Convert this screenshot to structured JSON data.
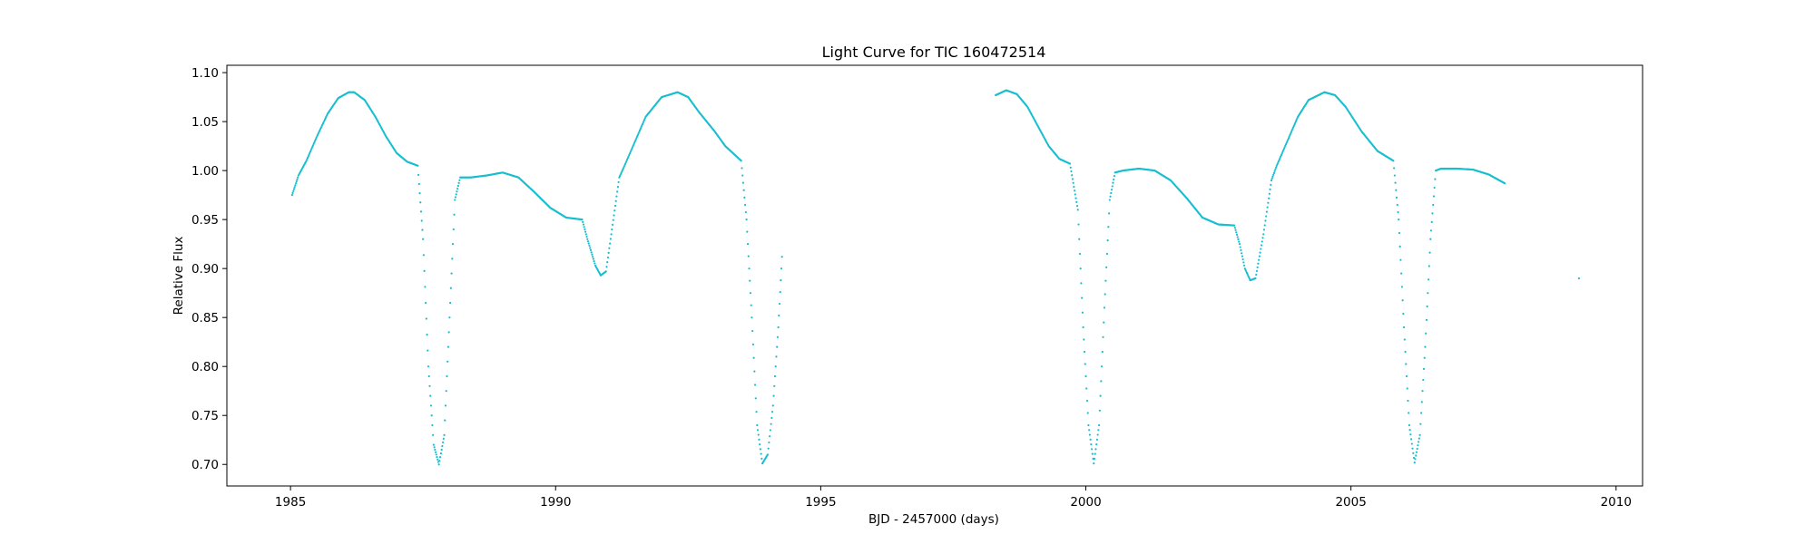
{
  "chart_data": {
    "type": "scatter",
    "title": "Light Curve for TIC 160472514",
    "xlabel": "BJD - 2457000 (days)",
    "ylabel": "Relative Flux",
    "xlim": [
      1983.8,
      2010.5
    ],
    "ylim": [
      0.678,
      1.1075
    ],
    "xticks": [
      1985,
      1990,
      1995,
      2000,
      2005,
      2010
    ],
    "xtick_labels": [
      "1985",
      "1990",
      "1995",
      "2000",
      "2005",
      "2010"
    ],
    "yticks": [
      0.7,
      0.75,
      0.8,
      0.85,
      0.9,
      0.95,
      1.0,
      1.05,
      1.1
    ],
    "ytick_labels": [
      "0.70",
      "0.75",
      "0.80",
      "0.85",
      "0.90",
      "0.95",
      "1.00",
      "1.05",
      "1.10"
    ],
    "grid": false,
    "marker_color": "#17becf",
    "series": [
      {
        "segment": 1,
        "x": [
          1985.03,
          1985.15,
          1985.3,
          1985.5,
          1985.7,
          1985.9,
          1986.1,
          1986.2,
          1986.4,
          1986.6,
          1986.8,
          1987.0,
          1987.2,
          1987.4,
          1987.5,
          1987.6,
          1987.7,
          1987.8,
          1987.9,
          1988.0,
          1988.1,
          1988.2,
          1988.4,
          1988.7,
          1989.0,
          1989.3,
          1989.6,
          1989.9,
          1990.2,
          1990.5,
          1990.6,
          1990.75,
          1990.85,
          1990.95,
          1991.05,
          1991.2,
          1991.3,
          1991.5,
          1991.7,
          1992.0,
          1992.3,
          1992.5,
          1992.7,
          1993.0,
          1993.2,
          1993.4,
          1993.5,
          1993.6,
          1993.7,
          1993.8,
          1993.9,
          1994.0,
          1994.1,
          1994.2,
          1994.27
        ],
        "y": [
          0.975,
          0.995,
          1.01,
          1.035,
          1.058,
          1.074,
          1.08,
          1.08,
          1.072,
          1.055,
          1.035,
          1.018,
          1.009,
          1.005,
          0.93,
          0.8,
          0.72,
          0.7,
          0.73,
          0.85,
          0.97,
          0.993,
          0.993,
          0.995,
          0.998,
          0.993,
          0.978,
          0.962,
          0.952,
          0.95,
          0.93,
          0.903,
          0.893,
          0.897,
          0.935,
          0.993,
          1.005,
          1.03,
          1.055,
          1.075,
          1.08,
          1.075,
          1.06,
          1.04,
          1.025,
          1.015,
          1.01,
          0.95,
          0.85,
          0.74,
          0.701,
          0.71,
          0.76,
          0.84,
          0.912
        ]
      },
      {
        "segment": 2,
        "x": [
          1998.3,
          1998.5,
          1998.7,
          1998.9,
          1999.1,
          1999.3,
          1999.5,
          1999.7,
          1999.85,
          1999.95,
          2000.05,
          2000.15,
          2000.25,
          2000.35,
          2000.45,
          2000.55,
          2000.7,
          2001.0,
          2001.3,
          2001.6,
          2001.9,
          2002.2,
          2002.5,
          2002.8,
          2002.9,
          2003.0,
          2003.1,
          2003.2,
          2003.35,
          2003.5,
          2003.6,
          2003.8,
          2004.0,
          2004.2,
          2004.5,
          2004.7,
          2004.9,
          2005.2,
          2005.5,
          2005.8,
          2005.9,
          2006.0,
          2006.1,
          2006.2,
          2006.3,
          2006.4,
          2006.5,
          2006.6,
          2006.7,
          2007.0,
          2007.3,
          2007.6,
          2007.9
        ],
        "y": [
          1.077,
          1.082,
          1.078,
          1.065,
          1.045,
          1.025,
          1.012,
          1.007,
          0.96,
          0.84,
          0.74,
          0.701,
          0.74,
          0.86,
          0.97,
          0.998,
          1.0,
          1.002,
          1.0,
          0.99,
          0.972,
          0.952,
          0.945,
          0.944,
          0.925,
          0.9,
          0.888,
          0.89,
          0.935,
          0.99,
          1.005,
          1.03,
          1.055,
          1.072,
          1.08,
          1.077,
          1.065,
          1.04,
          1.02,
          1.01,
          0.95,
          0.84,
          0.74,
          0.702,
          0.73,
          0.82,
          0.93,
          1.0,
          1.002,
          1.002,
          1.001,
          0.996,
          0.987
        ]
      },
      {
        "segment": 3,
        "x": [
          2009.3
        ],
        "y": [
          0.89
        ]
      }
    ]
  }
}
